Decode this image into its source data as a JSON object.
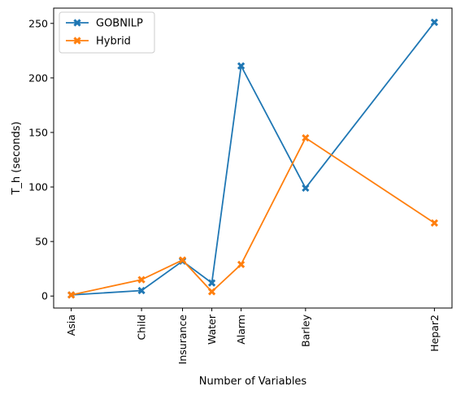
{
  "chart_data": {
    "type": "line",
    "categories": [
      "Asia",
      "Child",
      "Insurance",
      "Water",
      "Alarm",
      "Barley",
      "Hepar2"
    ],
    "x": [
      8,
      20,
      27,
      32,
      37,
      48,
      70
    ],
    "series": [
      {
        "name": "GOBNILP",
        "values": [
          1,
          5,
          32,
          12,
          211,
          99,
          251
        ],
        "color": "#1f77b4"
      },
      {
        "name": "Hybrid",
        "values": [
          1,
          15,
          33,
          4,
          29,
          145,
          67
        ],
        "color": "#ff7f0e"
      }
    ],
    "xlabel": "Number of Variables",
    "ylabel": "T_h (seconds)",
    "yticks": [
      0,
      50,
      100,
      150,
      200,
      250
    ],
    "xlim": [
      5,
      73
    ],
    "ylim": [
      -11,
      264
    ],
    "marker": "X",
    "grid": false,
    "legend": "top-left"
  }
}
